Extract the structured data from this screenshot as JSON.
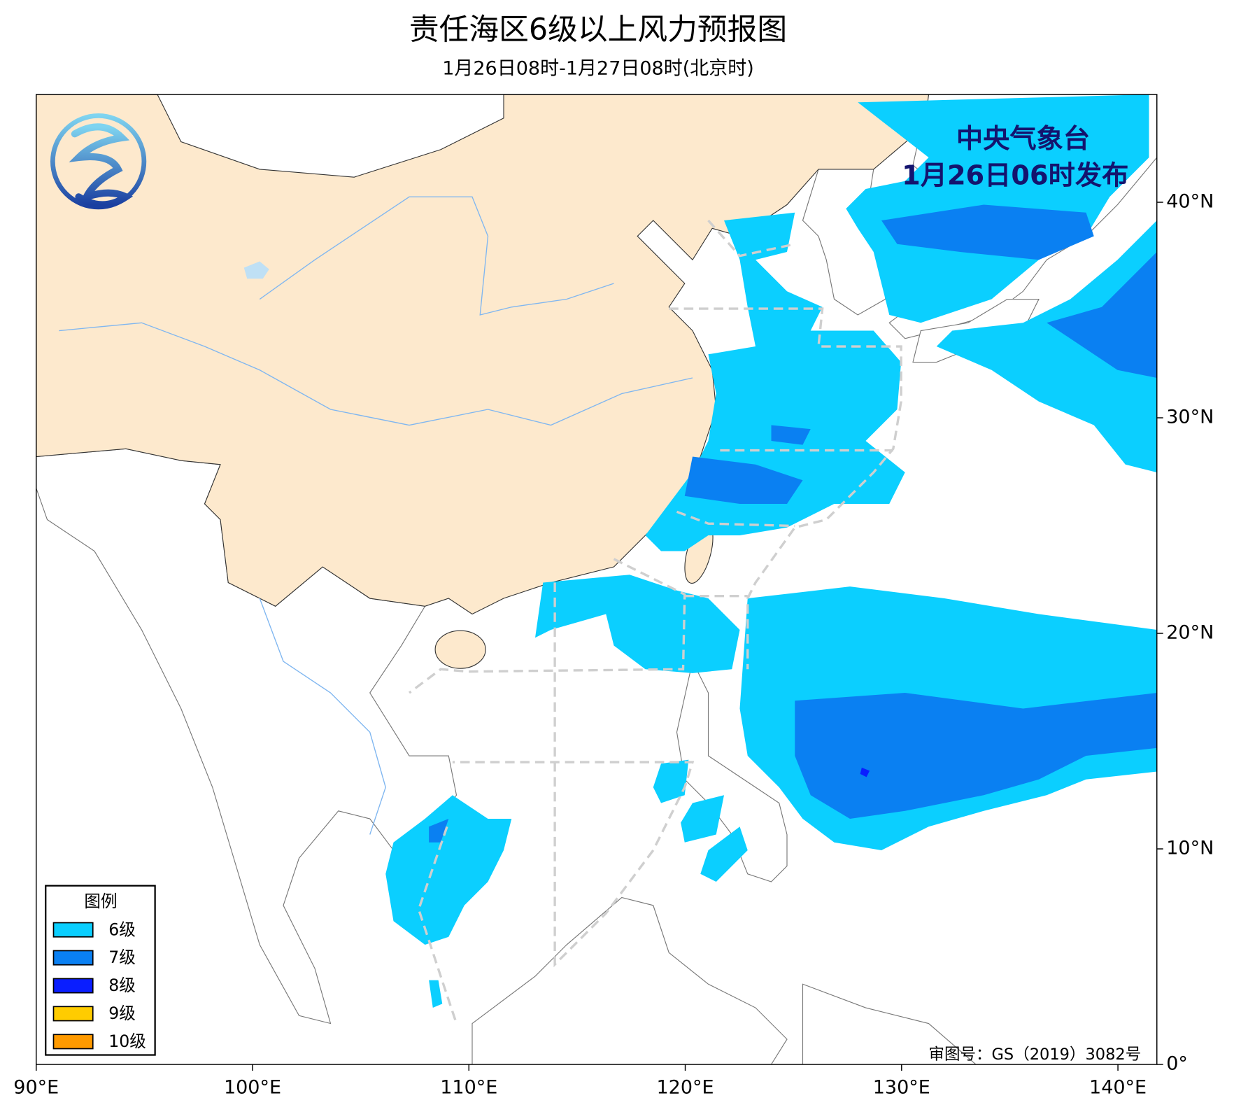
{
  "title": "责任海区6级以上风力预报图",
  "subtitle": "1月26日08时-1月27日08时(北京时)",
  "publisher": {
    "name": "中央气象台",
    "time": "1月26日06时发布"
  },
  "legend": {
    "title": "图例",
    "items": [
      {
        "label": "6级",
        "color": "#0bcfff"
      },
      {
        "label": "7级",
        "color": "#0a80f2"
      },
      {
        "label": "8级",
        "color": "#0a1eff"
      },
      {
        "label": "9级",
        "color": "#ffcc00"
      },
      {
        "label": "10级",
        "color": "#ff9a00"
      }
    ]
  },
  "map": {
    "xlim": [
      90,
      141.8
    ],
    "ylim": [
      0,
      45
    ],
    "xticks": [
      {
        "value": 90,
        "label": "90°E"
      },
      {
        "value": 100,
        "label": "100°E"
      },
      {
        "value": 110,
        "label": "110°E"
      },
      {
        "value": 120,
        "label": "120°E"
      },
      {
        "value": 130,
        "label": "130°E"
      },
      {
        "value": 140,
        "label": "140°E"
      }
    ],
    "yticks": [
      {
        "value": 0,
        "label": "0°"
      },
      {
        "value": 10,
        "label": "10°N"
      },
      {
        "value": 20,
        "label": "20°N"
      },
      {
        "value": 30,
        "label": "30°N"
      },
      {
        "value": 40,
        "label": "40°N"
      }
    ]
  },
  "approval": "审图号：GS（2019）3082号"
}
